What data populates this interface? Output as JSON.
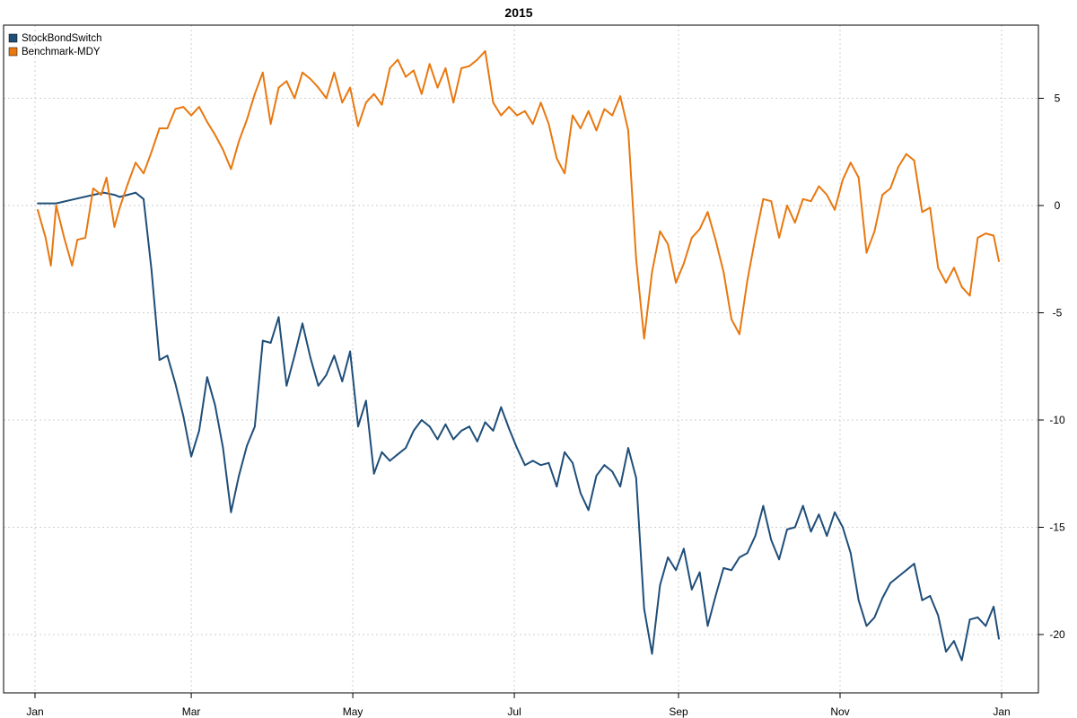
{
  "chart_data": {
    "type": "line",
    "title": "2015",
    "xlabel": "",
    "ylabel": "",
    "x_ticks": [
      "Jan",
      "Mar",
      "May",
      "Jul",
      "Sep",
      "Nov",
      "Jan"
    ],
    "y_ticks": [
      5,
      0,
      -5,
      -10,
      -15,
      -20
    ],
    "y_tick_labels": [
      "5",
      "0",
      "-5",
      "-10",
      "-15",
      "-20"
    ],
    "ylim": [
      -22.5,
      8.3
    ],
    "y_axis_side": "right",
    "grid": true,
    "legend_position": "top-left",
    "series": [
      {
        "name": "StockBondSwitch",
        "color": "#1f4e79",
        "x": [
          "2015-01-02",
          "2015-01-09",
          "2015-01-16",
          "2015-01-23",
          "2015-01-27",
          "2015-01-31",
          "2015-02-02",
          "2015-02-05",
          "2015-02-08",
          "2015-02-11",
          "2015-02-14",
          "2015-02-17",
          "2015-02-20",
          "2015-02-23",
          "2015-02-26",
          "2015-03-01",
          "2015-03-04",
          "2015-03-07",
          "2015-03-10",
          "2015-03-13",
          "2015-03-16",
          "2015-03-19",
          "2015-03-22",
          "2015-03-25",
          "2015-03-28",
          "2015-03-31",
          "2015-04-03",
          "2015-04-06",
          "2015-04-09",
          "2015-04-12",
          "2015-04-15",
          "2015-04-18",
          "2015-04-21",
          "2015-04-24",
          "2015-04-27",
          "2015-04-30",
          "2015-05-03",
          "2015-05-06",
          "2015-05-09",
          "2015-05-12",
          "2015-05-15",
          "2015-05-18",
          "2015-05-21",
          "2015-05-24",
          "2015-05-27",
          "2015-05-30",
          "2015-06-02",
          "2015-06-05",
          "2015-06-08",
          "2015-06-11",
          "2015-06-14",
          "2015-06-17",
          "2015-06-20",
          "2015-06-23",
          "2015-06-26",
          "2015-06-29",
          "2015-07-02",
          "2015-07-05",
          "2015-07-08",
          "2015-07-11",
          "2015-07-14",
          "2015-07-17",
          "2015-07-20",
          "2015-07-23",
          "2015-07-26",
          "2015-07-29",
          "2015-08-01",
          "2015-08-04",
          "2015-08-07",
          "2015-08-10",
          "2015-08-13",
          "2015-08-16",
          "2015-08-19",
          "2015-08-22",
          "2015-08-25",
          "2015-08-28",
          "2015-08-31",
          "2015-09-03",
          "2015-09-06",
          "2015-09-09",
          "2015-09-12",
          "2015-09-15",
          "2015-09-18",
          "2015-09-21",
          "2015-09-24",
          "2015-09-27",
          "2015-09-30",
          "2015-10-03",
          "2015-10-06",
          "2015-10-09",
          "2015-10-12",
          "2015-10-15",
          "2015-10-18",
          "2015-10-21",
          "2015-10-24",
          "2015-10-27",
          "2015-10-30",
          "2015-11-02",
          "2015-11-05",
          "2015-11-08",
          "2015-11-11",
          "2015-11-14",
          "2015-11-17",
          "2015-11-20",
          "2015-11-23",
          "2015-11-26",
          "2015-11-29",
          "2015-12-02",
          "2015-12-05",
          "2015-12-08",
          "2015-12-11",
          "2015-12-14",
          "2015-12-17",
          "2015-12-20",
          "2015-12-23",
          "2015-12-26",
          "2015-12-29",
          "2015-12-31"
        ],
        "values": [
          0.1,
          0.1,
          0.3,
          0.5,
          0.6,
          0.5,
          0.4,
          0.5,
          0.6,
          0.3,
          -3.0,
          -7.2,
          -7.0,
          -8.3,
          -9.8,
          -11.7,
          -10.5,
          -8.0,
          -9.3,
          -11.3,
          -14.3,
          -12.6,
          -11.2,
          -10.3,
          -6.3,
          -6.4,
          -5.2,
          -8.4,
          -7.0,
          -5.5,
          -7.1,
          -8.4,
          -7.9,
          -7.0,
          -8.2,
          -6.8,
          -10.3,
          -9.1,
          -12.5,
          -11.5,
          -11.9,
          -11.6,
          -11.3,
          -10.5,
          -10.0,
          -10.3,
          -10.9,
          -10.2,
          -10.9,
          -10.5,
          -10.3,
          -11.0,
          -10.1,
          -10.5,
          -9.4,
          -10.4,
          -11.3,
          -12.1,
          -11.9,
          -12.1,
          -12.0,
          -13.1,
          -11.5,
          -12.0,
          -13.4,
          -14.2,
          -12.6,
          -12.1,
          -12.4,
          -13.1,
          -11.3,
          -12.7,
          -18.8,
          -20.9,
          -17.7,
          -16.4,
          -17.0,
          -16.0,
          -17.9,
          -17.1,
          -19.6,
          -18.2,
          -16.9,
          -17.0,
          -16.4,
          -16.2,
          -15.4,
          -14.0,
          -15.6,
          -16.5,
          -15.1,
          -15.0,
          -14.0,
          -15.2,
          -14.4,
          -15.4,
          -14.3,
          -15.0,
          -16.2,
          -18.4,
          -19.6,
          -19.2,
          -18.3,
          -17.6,
          -17.3,
          -17.0,
          -16.7,
          -18.4,
          -18.2,
          -19.1,
          -20.8,
          -20.3,
          -21.2,
          -19.3,
          -19.2,
          -19.6,
          -18.7,
          -20.2
        ]
      },
      {
        "name": "Benchmark-MDY",
        "color": "#e8780f",
        "x": [
          "2015-01-02",
          "2015-01-05",
          "2015-01-07",
          "2015-01-09",
          "2015-01-12",
          "2015-01-15",
          "2015-01-17",
          "2015-01-20",
          "2015-01-23",
          "2015-01-26",
          "2015-01-28",
          "2015-01-31",
          "2015-02-02",
          "2015-02-05",
          "2015-02-08",
          "2015-02-11",
          "2015-02-14",
          "2015-02-17",
          "2015-02-20",
          "2015-02-23",
          "2015-02-26",
          "2015-03-01",
          "2015-03-04",
          "2015-03-07",
          "2015-03-10",
          "2015-03-13",
          "2015-03-16",
          "2015-03-19",
          "2015-03-22",
          "2015-03-25",
          "2015-03-28",
          "2015-03-31",
          "2015-04-03",
          "2015-04-06",
          "2015-04-09",
          "2015-04-12",
          "2015-04-15",
          "2015-04-18",
          "2015-04-21",
          "2015-04-24",
          "2015-04-27",
          "2015-04-30",
          "2015-05-03",
          "2015-05-06",
          "2015-05-09",
          "2015-05-12",
          "2015-05-15",
          "2015-05-18",
          "2015-05-21",
          "2015-05-24",
          "2015-05-27",
          "2015-05-30",
          "2015-06-02",
          "2015-06-05",
          "2015-06-08",
          "2015-06-11",
          "2015-06-14",
          "2015-06-17",
          "2015-06-20",
          "2015-06-23",
          "2015-06-26",
          "2015-06-29",
          "2015-07-02",
          "2015-07-05",
          "2015-07-08",
          "2015-07-11",
          "2015-07-14",
          "2015-07-17",
          "2015-07-20",
          "2015-07-23",
          "2015-07-26",
          "2015-07-29",
          "2015-08-01",
          "2015-08-04",
          "2015-08-07",
          "2015-08-10",
          "2015-08-13",
          "2015-08-16",
          "2015-08-19",
          "2015-08-22",
          "2015-08-25",
          "2015-08-28",
          "2015-08-31",
          "2015-09-03",
          "2015-09-06",
          "2015-09-09",
          "2015-09-12",
          "2015-09-15",
          "2015-09-18",
          "2015-09-21",
          "2015-09-24",
          "2015-09-27",
          "2015-09-30",
          "2015-10-03",
          "2015-10-06",
          "2015-10-09",
          "2015-10-12",
          "2015-10-15",
          "2015-10-18",
          "2015-10-21",
          "2015-10-24",
          "2015-10-27",
          "2015-10-30",
          "2015-11-02",
          "2015-11-05",
          "2015-11-08",
          "2015-11-11",
          "2015-11-14",
          "2015-11-17",
          "2015-11-20",
          "2015-11-23",
          "2015-11-26",
          "2015-11-29",
          "2015-12-02",
          "2015-12-05",
          "2015-12-08",
          "2015-12-11",
          "2015-12-14",
          "2015-12-17",
          "2015-12-20",
          "2015-12-23",
          "2015-12-26",
          "2015-12-29",
          "2015-12-31"
        ],
        "values": [
          -0.2,
          -1.5,
          -2.8,
          0.0,
          -1.5,
          -2.8,
          -1.6,
          -1.5,
          0.8,
          0.5,
          1.3,
          -1.0,
          -0.1,
          1.0,
          2.0,
          1.5,
          2.5,
          3.6,
          3.6,
          4.5,
          4.6,
          4.2,
          4.6,
          3.9,
          3.3,
          2.6,
          1.7,
          3.0,
          4.0,
          5.2,
          6.2,
          3.8,
          5.5,
          5.8,
          5.0,
          6.2,
          5.9,
          5.5,
          5.0,
          6.2,
          4.8,
          5.5,
          3.7,
          4.8,
          5.2,
          4.7,
          6.4,
          6.8,
          6.0,
          6.3,
          5.2,
          6.6,
          5.5,
          6.4,
          4.8,
          6.4,
          6.5,
          6.8,
          7.2,
          4.8,
          4.2,
          4.6,
          4.2,
          4.4,
          3.8,
          4.8,
          3.8,
          2.2,
          1.5,
          4.2,
          3.6,
          4.4,
          3.5,
          4.5,
          4.2,
          5.1,
          3.5,
          -2.5,
          -6.2,
          -3.1,
          -1.2,
          -1.8,
          -3.6,
          -2.7,
          -1.5,
          -1.1,
          -0.3,
          -1.6,
          -3.1,
          -5.3,
          -6.0,
          -3.5,
          -1.5,
          0.3,
          0.2,
          -1.5,
          0.0,
          -0.8,
          0.3,
          0.2,
          0.9,
          0.5,
          -0.2,
          1.2,
          2.0,
          1.3,
          -2.2,
          -1.2,
          0.5,
          0.8,
          1.8,
          2.4,
          2.1,
          -0.3,
          -0.1,
          -2.9,
          -3.6,
          -2.9,
          -3.8,
          -4.2,
          -1.5,
          -1.3,
          -1.4,
          -2.6
        ]
      }
    ]
  }
}
